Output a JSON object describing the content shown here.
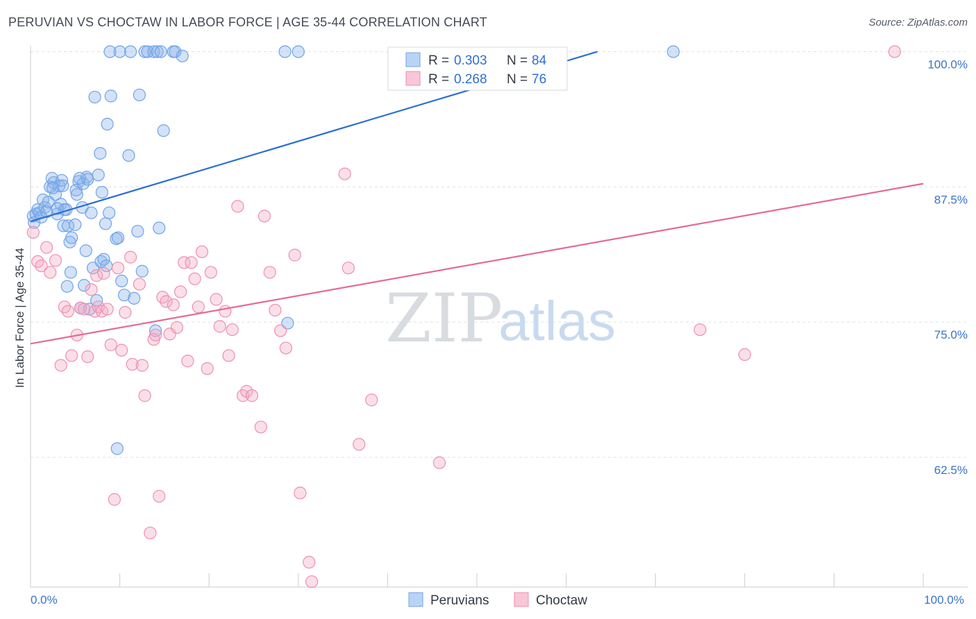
{
  "header": {
    "title": "PERUVIAN VS CHOCTAW IN LABOR FORCE | AGE 35-44 CORRELATION CHART",
    "source": "Source: ZipAtlas.com"
  },
  "watermark": {
    "zip": "ZIP",
    "atlas": "atlas"
  },
  "legend": {
    "r_label": "R =",
    "n_label": "N =",
    "items": [
      {
        "r": "0.303",
        "n": "84",
        "color": "#6fa3e8",
        "fill": "#b9d3f5"
      },
      {
        "r": "0.268",
        "n": "76",
        "color": "#ee8fae",
        "fill": "#f8c6d6"
      }
    ]
  },
  "bottom_legend": [
    {
      "label": "Peruvians",
      "color": "#6fa3e8",
      "fill": "#b9d3f5"
    },
    {
      "label": "Choctaw",
      "color": "#ee8fae",
      "fill": "#f8c6d6"
    }
  ],
  "chart_data": {
    "type": "scatter",
    "title": "PERUVIAN VS CHOCTAW IN LABOR FORCE | AGE 35-44 CORRELATION CHART",
    "xlabel": "",
    "ylabel": "In Labor Force | Age 35-44",
    "xlim": [
      0,
      100
    ],
    "ylim": [
      50.5,
      100.8
    ],
    "x_tick_labels": [
      {
        "value": 0,
        "label": "0.0%"
      },
      {
        "value": 100,
        "label": "100.0%"
      }
    ],
    "y_tick_labels": [
      {
        "value": 100,
        "label": "100.0%"
      },
      {
        "value": 87.5,
        "label": "87.5%"
      },
      {
        "value": 75,
        "label": "75.0%"
      },
      {
        "value": 62.5,
        "label": "62.5%"
      }
    ],
    "grid": true,
    "legend_position": "top-center",
    "series": [
      {
        "name": "Peruvians",
        "color": "#6fa3e8",
        "trend": {
          "x": [
            0,
            63.5
          ],
          "y": [
            84.3,
            100
          ]
        },
        "points": [
          [
            0.3,
            84.8
          ],
          [
            0.4,
            84.2
          ],
          [
            0.6,
            85.0
          ],
          [
            0.8,
            85.4
          ],
          [
            1.0,
            85.1
          ],
          [
            1.2,
            84.7
          ],
          [
            1.4,
            86.3
          ],
          [
            1.6,
            85.6
          ],
          [
            1.8,
            85.2
          ],
          [
            2.0,
            86.1
          ],
          [
            2.2,
            87.5
          ],
          [
            2.4,
            88.3
          ],
          [
            2.6,
            87.9
          ],
          [
            2.8,
            86.8
          ],
          [
            3.0,
            85.0
          ],
          [
            3.2,
            87.6
          ],
          [
            3.4,
            85.9
          ],
          [
            3.5,
            88.1
          ],
          [
            3.6,
            87.6
          ],
          [
            3.7,
            83.9
          ],
          [
            3.8,
            85.4
          ],
          [
            4.0,
            85.4
          ],
          [
            4.1,
            78.3
          ],
          [
            4.2,
            83.9
          ],
          [
            4.4,
            82.4
          ],
          [
            4.5,
            79.6
          ],
          [
            4.6,
            82.8
          ],
          [
            5.0,
            84.0
          ],
          [
            5.1,
            87.2
          ],
          [
            5.2,
            86.8
          ],
          [
            5.4,
            88.0
          ],
          [
            5.6,
            76.3
          ],
          [
            5.8,
            85.6
          ],
          [
            5.9,
            87.8
          ],
          [
            6.0,
            78.4
          ],
          [
            6.2,
            81.6
          ],
          [
            6.3,
            88.4
          ],
          [
            6.4,
            88.2
          ],
          [
            6.6,
            76.2
          ],
          [
            6.8,
            85.1
          ],
          [
            7.0,
            80.0
          ],
          [
            7.2,
            95.8
          ],
          [
            7.4,
            77.0
          ],
          [
            7.6,
            88.6
          ],
          [
            7.8,
            90.6
          ],
          [
            7.9,
            80.6
          ],
          [
            8.0,
            87.0
          ],
          [
            8.2,
            80.8
          ],
          [
            8.4,
            84.1
          ],
          [
            8.5,
            80.2
          ],
          [
            8.6,
            93.3
          ],
          [
            8.8,
            85.1
          ],
          [
            8.9,
            100.0
          ],
          [
            9.0,
            95.9
          ],
          [
            9.6,
            82.7
          ],
          [
            9.8,
            82.8
          ],
          [
            10.0,
            100.0
          ],
          [
            10.2,
            78.8
          ],
          [
            10.5,
            77.5
          ],
          [
            11.0,
            90.4
          ],
          [
            11.2,
            100.0
          ],
          [
            11.6,
            77.2
          ],
          [
            12.0,
            83.4
          ],
          [
            12.2,
            96.0
          ],
          [
            12.5,
            79.7
          ],
          [
            12.8,
            100.0
          ],
          [
            13.1,
            100.0
          ],
          [
            13.8,
            100.0
          ],
          [
            14.0,
            74.2
          ],
          [
            14.2,
            100.0
          ],
          [
            14.4,
            83.7
          ],
          [
            14.6,
            100.0
          ],
          [
            14.9,
            92.7
          ],
          [
            16.0,
            100.0
          ],
          [
            16.2,
            100.0
          ],
          [
            17.0,
            99.6
          ],
          [
            28.5,
            100.0
          ],
          [
            28.8,
            74.9
          ],
          [
            30.0,
            100.0
          ],
          [
            72.0,
            100.0
          ],
          [
            9.7,
            63.3
          ],
          [
            5.5,
            88.3
          ],
          [
            3.0,
            85.5
          ],
          [
            2.5,
            87.4
          ]
        ]
      },
      {
        "name": "Choctaw",
        "color": "#ee8fae",
        "trend": {
          "x": [
            0,
            100
          ],
          "y": [
            73.0,
            87.8
          ]
        },
        "points": [
          [
            0.3,
            83.3
          ],
          [
            0.8,
            80.6
          ],
          [
            1.2,
            80.2
          ],
          [
            1.8,
            81.9
          ],
          [
            2.2,
            79.6
          ],
          [
            2.8,
            80.7
          ],
          [
            3.4,
            71.0
          ],
          [
            3.8,
            76.4
          ],
          [
            4.2,
            76.0
          ],
          [
            4.6,
            71.9
          ],
          [
            5.2,
            73.8
          ],
          [
            5.6,
            76.3
          ],
          [
            6.0,
            76.2
          ],
          [
            6.4,
            71.8
          ],
          [
            6.8,
            78.0
          ],
          [
            7.2,
            76.0
          ],
          [
            7.4,
            79.3
          ],
          [
            7.6,
            76.4
          ],
          [
            8.0,
            76.0
          ],
          [
            8.2,
            79.5
          ],
          [
            8.6,
            76.2
          ],
          [
            9.0,
            72.9
          ],
          [
            9.4,
            58.6
          ],
          [
            9.8,
            80.0
          ],
          [
            10.2,
            72.4
          ],
          [
            10.6,
            75.9
          ],
          [
            11.2,
            81.0
          ],
          [
            11.4,
            71.1
          ],
          [
            12.2,
            78.5
          ],
          [
            12.5,
            71.0
          ],
          [
            12.8,
            68.2
          ],
          [
            13.4,
            55.5
          ],
          [
            13.8,
            73.4
          ],
          [
            14.0,
            73.8
          ],
          [
            14.4,
            58.9
          ],
          [
            14.8,
            77.3
          ],
          [
            15.2,
            76.9
          ],
          [
            15.6,
            73.9
          ],
          [
            16.0,
            76.6
          ],
          [
            16.4,
            74.5
          ],
          [
            16.8,
            77.8
          ],
          [
            17.2,
            80.5
          ],
          [
            17.6,
            71.4
          ],
          [
            18.0,
            80.5
          ],
          [
            18.4,
            79.0
          ],
          [
            18.8,
            76.4
          ],
          [
            19.2,
            81.5
          ],
          [
            19.8,
            70.7
          ],
          [
            20.2,
            79.6
          ],
          [
            20.8,
            77.1
          ],
          [
            21.2,
            74.6
          ],
          [
            21.8,
            76.0
          ],
          [
            22.2,
            71.9
          ],
          [
            22.6,
            74.3
          ],
          [
            23.2,
            85.7
          ],
          [
            23.8,
            68.2
          ],
          [
            24.2,
            68.6
          ],
          [
            24.8,
            68.2
          ],
          [
            25.8,
            65.3
          ],
          [
            26.2,
            84.8
          ],
          [
            26.8,
            79.6
          ],
          [
            27.4,
            76.1
          ],
          [
            28.0,
            74.2
          ],
          [
            28.6,
            72.6
          ],
          [
            29.6,
            81.2
          ],
          [
            30.2,
            59.2
          ],
          [
            31.2,
            52.8
          ],
          [
            31.5,
            51.0
          ],
          [
            35.2,
            88.7
          ],
          [
            35.6,
            80.0
          ],
          [
            36.8,
            63.7
          ],
          [
            38.2,
            67.8
          ],
          [
            45.8,
            62.0
          ],
          [
            75.0,
            74.3
          ],
          [
            80.0,
            72.0
          ],
          [
            96.8,
            100.0
          ]
        ]
      }
    ]
  }
}
